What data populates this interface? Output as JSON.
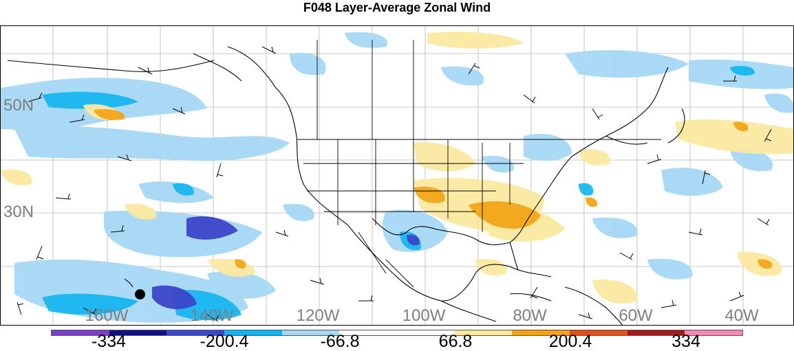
{
  "title": "F048 Layer-Average Zonal Wind",
  "latitude_labels": [
    "50N",
    "30N"
  ],
  "longitude_labels": [
    "160W",
    "140W",
    "120W",
    "100W",
    "80W",
    "60W",
    "40W"
  ],
  "colorbar": {
    "colors": [
      "#7b3fc4",
      "#101080",
      "#3c46c8",
      "#10b4f0",
      "#a6d8f5",
      "#ffffff",
      "#ffffff",
      "#fbe9a0",
      "#f2a30f",
      "#e4501c",
      "#a21b1b",
      "#f08cb4"
    ],
    "labels": [
      "-334",
      "-200.4",
      "-66.8",
      "66.8",
      "200.4",
      "334"
    ]
  },
  "colors": {
    "land_outline": "#000000",
    "grid": "#b5b5b5",
    "label": "#7f7f7f"
  }
}
